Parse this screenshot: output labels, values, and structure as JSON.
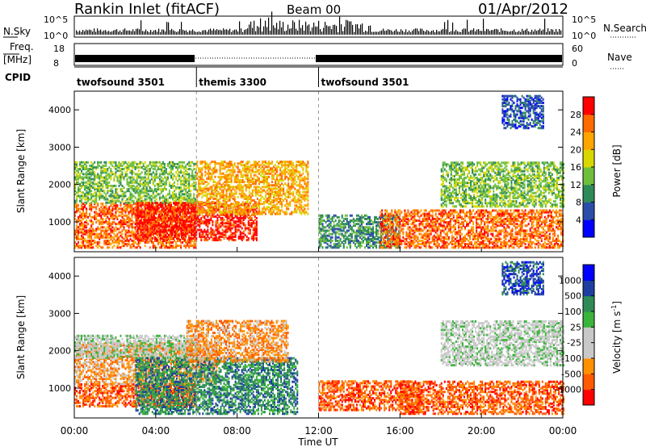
{
  "header": {
    "site": "Rankin Inlet (fitACF)",
    "beam": "Beam 00",
    "date": "01/Apr/2012"
  },
  "status_panels": {
    "nsky": {
      "label": "N.Sky",
      "yticks": [
        "10^5",
        "10^0"
      ],
      "right_label": "N.Search"
    },
    "freq": {
      "label_1": "Freq.",
      "label_2": "[MHz]",
      "yticks": [
        "18",
        "8"
      ],
      "right_yticks": [
        "60",
        "0"
      ],
      "right_label": "Nave"
    },
    "cpid": {
      "label": "CPID",
      "segments": [
        {
          "name": "twofsound 3501",
          "start_hour": 0,
          "end_hour": 6
        },
        {
          "name": "themis 3300",
          "start_hour": 6,
          "end_hour": 12
        },
        {
          "name": "twofsound 3501",
          "start_hour": 12,
          "end_hour": 24
        }
      ]
    }
  },
  "chart_data": [
    {
      "type": "heatmap",
      "quantity": "power",
      "ylabel": "Slant Range [km]",
      "x_range_hours": [
        0,
        24
      ],
      "ylim": [
        200,
        4500
      ],
      "yticks": [
        "4000",
        "3000",
        "2000",
        "1000"
      ],
      "colorbar": {
        "label": "Power [dB]",
        "ticks": [
          "28",
          "24",
          "20",
          "16",
          "12",
          "8",
          "4"
        ],
        "colors": [
          "#0000ff",
          "#2a4ea8",
          "#2e8b57",
          "#6fbf3f",
          "#d8d800",
          "#ffa500",
          "#ff6a00",
          "#ff0000"
        ]
      },
      "bands": [
        {
          "start_h": 0.0,
          "end_h": 6.0,
          "range_km": [
            300,
            1500
          ],
          "level": 6
        },
        {
          "start_h": 0.0,
          "end_h": 6.0,
          "range_km": [
            1500,
            2600
          ],
          "level": 3
        },
        {
          "start_h": 3.0,
          "end_h": 9.0,
          "range_km": [
            500,
            1500
          ],
          "level": 7
        },
        {
          "start_h": 6.0,
          "end_h": 11.5,
          "range_km": [
            1200,
            2600
          ],
          "level": 5
        },
        {
          "start_h": 12.0,
          "end_h": 16.0,
          "range_km": [
            300,
            1200
          ],
          "level": 2
        },
        {
          "start_h": 15.0,
          "end_h": 24.0,
          "range_km": [
            300,
            1300
          ],
          "level": 6
        },
        {
          "start_h": 18.0,
          "end_h": 24.0,
          "range_km": [
            1400,
            2600
          ],
          "level": 3
        },
        {
          "start_h": 21.0,
          "end_h": 23.0,
          "range_km": [
            3500,
            4400
          ],
          "level": 1
        }
      ]
    },
    {
      "type": "heatmap",
      "quantity": "velocity",
      "ylabel": "Slant Range [km]",
      "x_range_hours": [
        0,
        24
      ],
      "ylim": [
        200,
        4500
      ],
      "xlabel": "Time UT",
      "xticks": [
        "00:00",
        "04:00",
        "08:00",
        "12:00",
        "16:00",
        "20:00",
        "00:00"
      ],
      "yticks": [
        "4000",
        "3000",
        "2000",
        "1000"
      ],
      "colorbar": {
        "label": "Velocity [m s",
        "label_sup": "-1",
        "label_end": "]",
        "ticks": [
          "1000",
          "500",
          "100",
          "25",
          "-25",
          "-100",
          "-500",
          "-1000"
        ],
        "colors": [
          "#ff0000",
          "#ff5a00",
          "#ff9000",
          "#c8c8c8",
          "#c8c8c8",
          "#3cb43c",
          "#2e8b57",
          "#1c3fa0",
          "#0000ff"
        ]
      },
      "bands": [
        {
          "start_h": 0.0,
          "end_h": 6.0,
          "range_km": [
            500,
            1100
          ],
          "level": 1
        },
        {
          "start_h": 0.0,
          "end_h": 7.0,
          "range_km": [
            1100,
            2200
          ],
          "level": 2
        },
        {
          "start_h": 0.0,
          "end_h": 6.0,
          "range_km": [
            1800,
            2400
          ],
          "level": 4
        },
        {
          "start_h": 3.0,
          "end_h": 11.0,
          "range_km": [
            300,
            1800
          ],
          "level": 6
        },
        {
          "start_h": 5.5,
          "end_h": 10.5,
          "range_km": [
            1700,
            2800
          ],
          "level": 2
        },
        {
          "start_h": 12.0,
          "end_h": 17.0,
          "range_km": [
            400,
            1200
          ],
          "level": 1
        },
        {
          "start_h": 16.0,
          "end_h": 24.0,
          "range_km": [
            300,
            1200
          ],
          "level": 1
        },
        {
          "start_h": 18.0,
          "end_h": 24.0,
          "range_km": [
            1600,
            2800
          ],
          "level": 4
        },
        {
          "start_h": 21.0,
          "end_h": 23.0,
          "range_km": [
            3500,
            4400
          ],
          "level": 7
        }
      ]
    }
  ]
}
